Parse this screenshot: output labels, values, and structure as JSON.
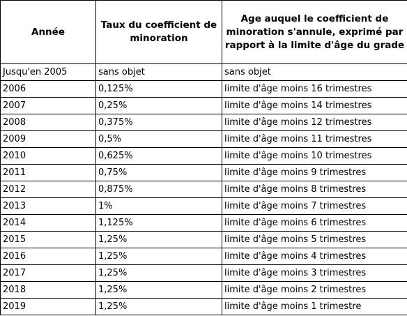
{
  "table": {
    "header": [
      "Année",
      "Taux du coefficient de minoration",
      "Age auquel le coefficient de minoration s'annule, exprimé par rapport à la limite d'âge du grade"
    ],
    "rows": [
      [
        "Jusqu'en 2005",
        "sans objet",
        "sans objet"
      ],
      [
        "2006",
        "0,125%",
        "limite d'âge moins 16 trimestres"
      ],
      [
        "2007",
        "0,25%",
        "limite d'âge moins 14 trimestres"
      ],
      [
        "2008",
        "0,375%",
        "limite d'âge moins 12 trimestres"
      ],
      [
        "2009",
        "0,5%",
        "limite d'âge moins 11 trimestres"
      ],
      [
        "2010",
        "0,625%",
        "limite d'âge moins 10 trimestres"
      ],
      [
        "2011",
        "0,75%",
        "limite d'âge moins 9 trimestres"
      ],
      [
        "2012",
        "0,875%",
        "limite d'âge moins 8 trimestres"
      ],
      [
        "2013",
        "1%",
        "limite d'âge moins 7 trimestres"
      ],
      [
        "2014",
        "1,125%",
        "limite d'âge moins 6 trimestres"
      ],
      [
        "2015",
        "1,25%",
        "limite d'âge moins 5 trimestres"
      ],
      [
        "2016",
        "1,25%",
        "limite d'âge moins 4 trimestres"
      ],
      [
        "2017",
        "1,25%",
        "limite d'âge moins 3 trimestres"
      ],
      [
        "2018",
        "1,25%",
        "limite d'âge moins 2 trimestres"
      ],
      [
        "2019",
        "1,25%",
        "limite d'âge moins 1 trimestre"
      ]
    ]
  }
}
